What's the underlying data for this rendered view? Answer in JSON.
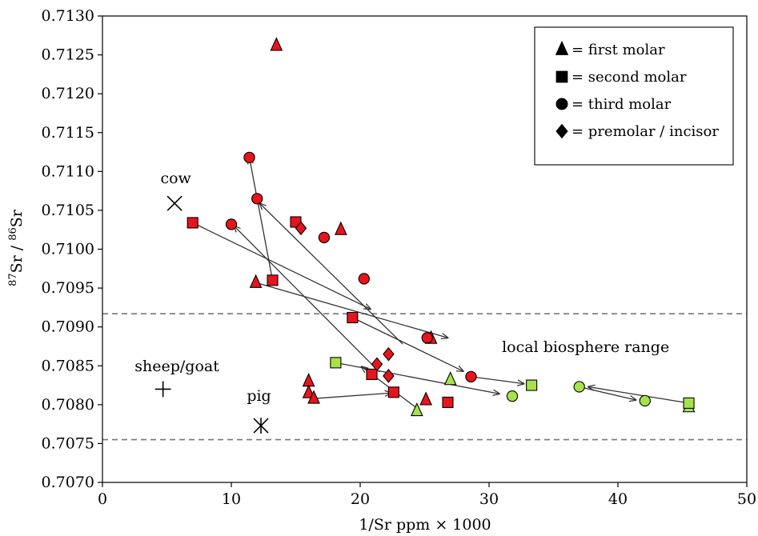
{
  "chart_data": {
    "type": "scatter",
    "title": "",
    "xlabel": "1/Sr ppm × 1000",
    "ylabel_sup1": "87",
    "ylabel_mid": "Sr / ",
    "ylabel_sup2": "86",
    "ylabel_end": "Sr",
    "xlim": [
      0,
      50
    ],
    "ylim": [
      0.707,
      0.713
    ],
    "x_ticks": [
      0,
      10,
      20,
      30,
      40,
      50
    ],
    "y_ticks": [
      0.707,
      0.7075,
      0.708,
      0.7085,
      0.709,
      0.7095,
      0.71,
      0.7105,
      0.711,
      0.7115,
      0.712,
      0.7125,
      0.713
    ],
    "y_tick_decimals": 4,
    "grid": false,
    "legend_placement": "top-right",
    "legend": [
      {
        "shape": "triangle",
        "label": "= first molar"
      },
      {
        "shape": "square",
        "label": "= second molar"
      },
      {
        "shape": "circle",
        "label": "= third molar"
      },
      {
        "shape": "diamond",
        "label": "= premolar / incisor"
      }
    ],
    "colors": {
      "red": "#e8141c",
      "green": "#a6e24a",
      "outline": "#000000",
      "dashed": "#777777",
      "arrow": "#333333"
    },
    "hlines": [
      {
        "y": 0.70917,
        "style": "dashed"
      },
      {
        "y": 0.70755,
        "style": "dashed"
      }
    ],
    "annotations": [
      {
        "text": "cow",
        "x": 4.5,
        "y": 0.71085
      },
      {
        "text": "sheep/goat",
        "x": 2.5,
        "y": 0.70843
      },
      {
        "text": "pig",
        "x": 11.2,
        "y": 0.70805
      },
      {
        "text": "local biosphere range",
        "x": 31,
        "y": 0.70868
      }
    ],
    "references": [
      {
        "name": "cow",
        "marker": "x",
        "x": 5.6,
        "y": 0.71059
      },
      {
        "name": "sheep/goat",
        "marker": "plus",
        "x": 4.7,
        "y": 0.7082
      },
      {
        "name": "pig",
        "marker": "asterisk",
        "x": 12.3,
        "y": 0.70773
      }
    ],
    "points": [
      {
        "shape": "triangle",
        "color": "red",
        "x": 13.5,
        "y": 0.71262
      },
      {
        "shape": "triangle",
        "color": "red",
        "x": 11.9,
        "y": 0.70957
      },
      {
        "shape": "triangle",
        "color": "red",
        "x": 18.5,
        "y": 0.71025
      },
      {
        "shape": "triangle",
        "color": "red",
        "x": 16.0,
        "y": 0.7083
      },
      {
        "shape": "triangle",
        "color": "red",
        "x": 16.0,
        "y": 0.70815
      },
      {
        "shape": "triangle",
        "color": "red",
        "x": 16.4,
        "y": 0.70808
      },
      {
        "shape": "triangle",
        "color": "red",
        "x": 25.1,
        "y": 0.70806
      },
      {
        "shape": "triangle",
        "color": "red",
        "x": 25.5,
        "y": 0.70885
      },
      {
        "shape": "triangle",
        "color": "green",
        "x": 24.4,
        "y": 0.70792
      },
      {
        "shape": "triangle",
        "color": "green",
        "x": 27.0,
        "y": 0.70832
      },
      {
        "shape": "triangle",
        "color": "green",
        "x": 45.5,
        "y": 0.70797
      },
      {
        "shape": "square",
        "color": "red",
        "x": 7.0,
        "y": 0.71034
      },
      {
        "shape": "square",
        "color": "red",
        "x": 15.0,
        "y": 0.71035
      },
      {
        "shape": "square",
        "color": "red",
        "x": 13.2,
        "y": 0.7096
      },
      {
        "shape": "square",
        "color": "red",
        "x": 19.4,
        "y": 0.70912
      },
      {
        "shape": "square",
        "color": "red",
        "x": 20.9,
        "y": 0.70839
      },
      {
        "shape": "square",
        "color": "red",
        "x": 22.6,
        "y": 0.70816
      },
      {
        "shape": "square",
        "color": "red",
        "x": 26.8,
        "y": 0.70803
      },
      {
        "shape": "square",
        "color": "green",
        "x": 18.1,
        "y": 0.70854
      },
      {
        "shape": "square",
        "color": "green",
        "x": 33.3,
        "y": 0.70825
      },
      {
        "shape": "square",
        "color": "green",
        "x": 45.5,
        "y": 0.70802
      },
      {
        "shape": "circle",
        "color": "red",
        "x": 11.4,
        "y": 0.71118
      },
      {
        "shape": "circle",
        "color": "red",
        "x": 12.0,
        "y": 0.71065
      },
      {
        "shape": "circle",
        "color": "red",
        "x": 10.0,
        "y": 0.71032
      },
      {
        "shape": "circle",
        "color": "red",
        "x": 17.2,
        "y": 0.71015
      },
      {
        "shape": "circle",
        "color": "red",
        "x": 20.3,
        "y": 0.70962
      },
      {
        "shape": "circle",
        "color": "red",
        "x": 25.2,
        "y": 0.70886
      },
      {
        "shape": "circle",
        "color": "red",
        "x": 28.6,
        "y": 0.70836
      },
      {
        "shape": "circle",
        "color": "green",
        "x": 31.8,
        "y": 0.70811
      },
      {
        "shape": "circle",
        "color": "green",
        "x": 37.0,
        "y": 0.70823
      },
      {
        "shape": "circle",
        "color": "green",
        "x": 42.1,
        "y": 0.70805
      },
      {
        "shape": "diamond",
        "color": "red",
        "x": 15.4,
        "y": 0.71027
      },
      {
        "shape": "diamond",
        "color": "red",
        "x": 21.3,
        "y": 0.70852
      },
      {
        "shape": "diamond",
        "color": "red",
        "x": 22.2,
        "y": 0.70865
      },
      {
        "shape": "diamond",
        "color": "red",
        "x": 22.2,
        "y": 0.70837
      }
    ],
    "arrows": [
      {
        "from": [
          11.9,
          0.70957
        ],
        "to": [
          26.8,
          0.70886
        ]
      },
      {
        "from": [
          7.0,
          0.71034
        ],
        "to": [
          20.8,
          0.70923
        ]
      },
      {
        "from": [
          13.2,
          0.7096
        ],
        "to": [
          11.4,
          0.71118
        ]
      },
      {
        "from": [
          21.5,
          0.70842
        ],
        "to": [
          10.2,
          0.7103
        ]
      },
      {
        "from": [
          19.4,
          0.70912
        ],
        "to": [
          28.0,
          0.70843
        ]
      },
      {
        "from": [
          23.3,
          0.70878
        ],
        "to": [
          12.2,
          0.71059
        ]
      },
      {
        "from": [
          16.5,
          0.70808
        ],
        "to": [
          22.4,
          0.70815
        ]
      },
      {
        "from": [
          24.6,
          0.70793
        ],
        "to": [
          20.1,
          0.70849
        ]
      },
      {
        "from": [
          18.1,
          0.70854
        ],
        "to": [
          30.8,
          0.70814
        ]
      },
      {
        "from": [
          28.6,
          0.70836
        ],
        "to": [
          32.7,
          0.70827
        ]
      },
      {
        "from": [
          37.0,
          0.70823
        ],
        "to": [
          41.4,
          0.70806
        ]
      },
      {
        "from": [
          45.5,
          0.70802
        ],
        "to": [
          37.7,
          0.70823
        ]
      }
    ]
  }
}
